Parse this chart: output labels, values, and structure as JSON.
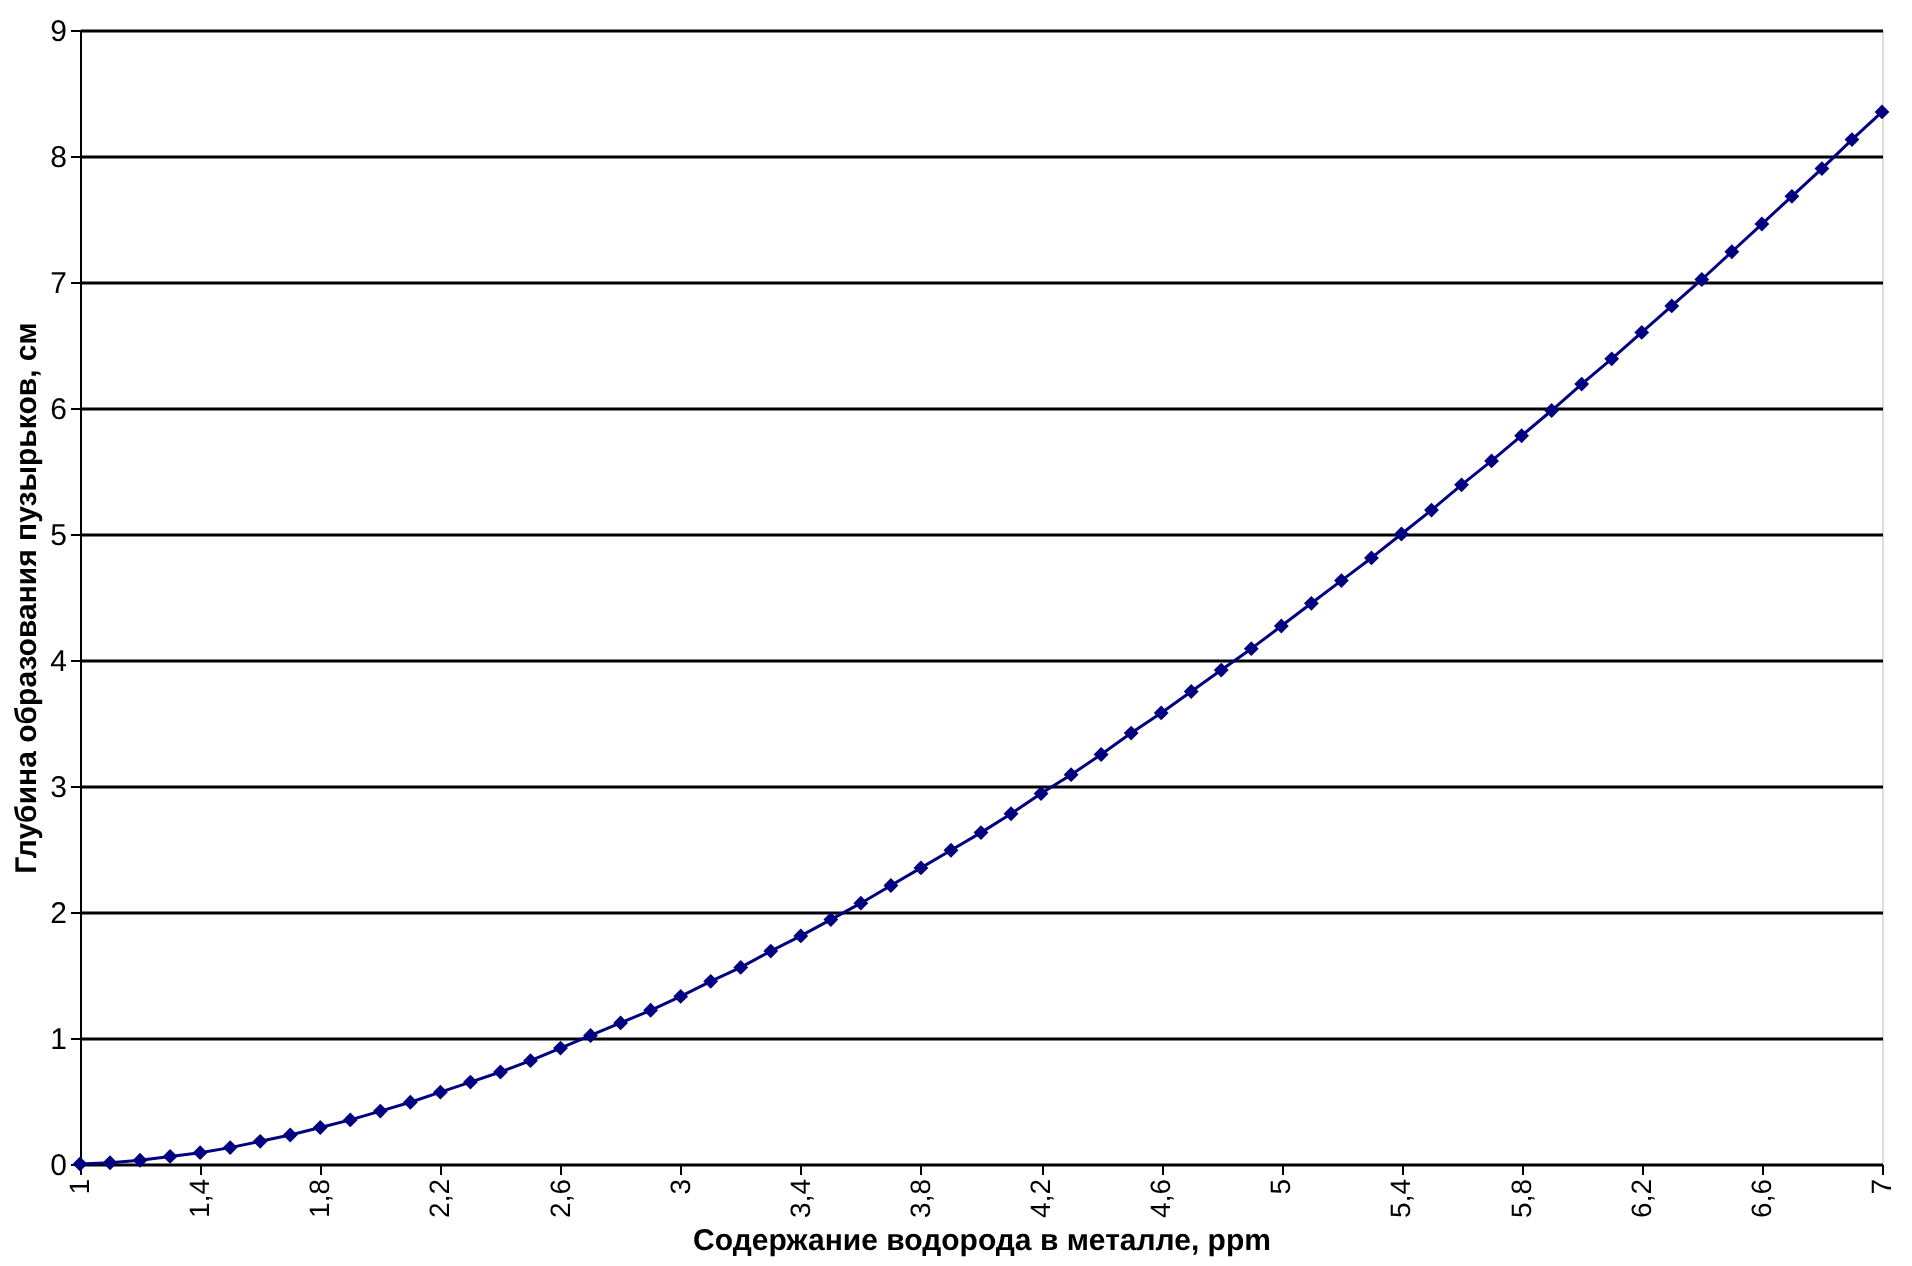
{
  "chart_data": {
    "type": "line",
    "xlabel": "Содержание водорода в металле, ppm",
    "ylabel": "Глубина образования пузырьков, см",
    "x": [
      1,
      1.1,
      1.2,
      1.3,
      1.4,
      1.5,
      1.6,
      1.7,
      1.8,
      1.9,
      2,
      2.1,
      2.2,
      2.3,
      2.4,
      2.5,
      2.6,
      2.7,
      2.8,
      2.9,
      3,
      3.1,
      3.2,
      3.3,
      3.4,
      3.5,
      3.6,
      3.7,
      3.8,
      3.9,
      4,
      4.1,
      4.2,
      4.3,
      4.4,
      4.5,
      4.6,
      4.7,
      4.8,
      4.9,
      5,
      5.1,
      5.2,
      5.3,
      5.4,
      5.5,
      5.6,
      5.7,
      5.8,
      5.9,
      6,
      6.1,
      6.2,
      6.3,
      6.4,
      6.5,
      6.6,
      6.7,
      6.8,
      6.9,
      7
    ],
    "series": [
      {
        "color": "#000080",
        "values": [
          0,
          0.01,
          0.03,
          0.06,
          0.09,
          0.13,
          0.18,
          0.23,
          0.29,
          0.35,
          0.42,
          0.49,
          0.57,
          0.65,
          0.73,
          0.82,
          0.92,
          1.02,
          1.12,
          1.22,
          1.33,
          1.45,
          1.56,
          1.69,
          1.81,
          1.94,
          2.07,
          2.21,
          2.35,
          2.49,
          2.63,
          2.78,
          2.94,
          3.09,
          3.25,
          3.42,
          3.58,
          3.75,
          3.92,
          4.09,
          4.27,
          4.45,
          4.63,
          4.81,
          5.0,
          5.19,
          5.39,
          5.58,
          5.78,
          5.98,
          6.19,
          6.39,
          6.6,
          6.81,
          7.02,
          7.24,
          7.46,
          7.68,
          7.9,
          8.13,
          8.35
        ]
      }
    ],
    "xlim": [
      1,
      7
    ],
    "xticks": [
      1,
      {
        "value": 1.4,
        "label": "1,4"
      },
      {
        "value": 1.8,
        "label": "1,8"
      },
      {
        "value": 2.2,
        "label": "2,2"
      },
      {
        "value": 2.6,
        "label": "2,6"
      },
      3,
      {
        "value": 3.4,
        "label": "3,4"
      },
      {
        "value": 3.8,
        "label": "3,8"
      },
      {
        "value": 4.2,
        "label": "4,2"
      },
      {
        "value": 4.6,
        "label": "4,6"
      },
      5,
      {
        "value": 5.4,
        "label": "5,4"
      },
      {
        "value": 5.8,
        "label": "5,8"
      },
      {
        "value": 6.2,
        "label": "6,2"
      },
      {
        "value": 6.6,
        "label": "6,6"
      },
      7
    ],
    "ylim": [
      0,
      9
    ],
    "yticks": [
      0,
      1,
      2,
      3,
      4,
      5,
      6,
      7,
      8,
      9
    ],
    "grid": "y",
    "marker": "diamond",
    "line_style": "solid"
  }
}
